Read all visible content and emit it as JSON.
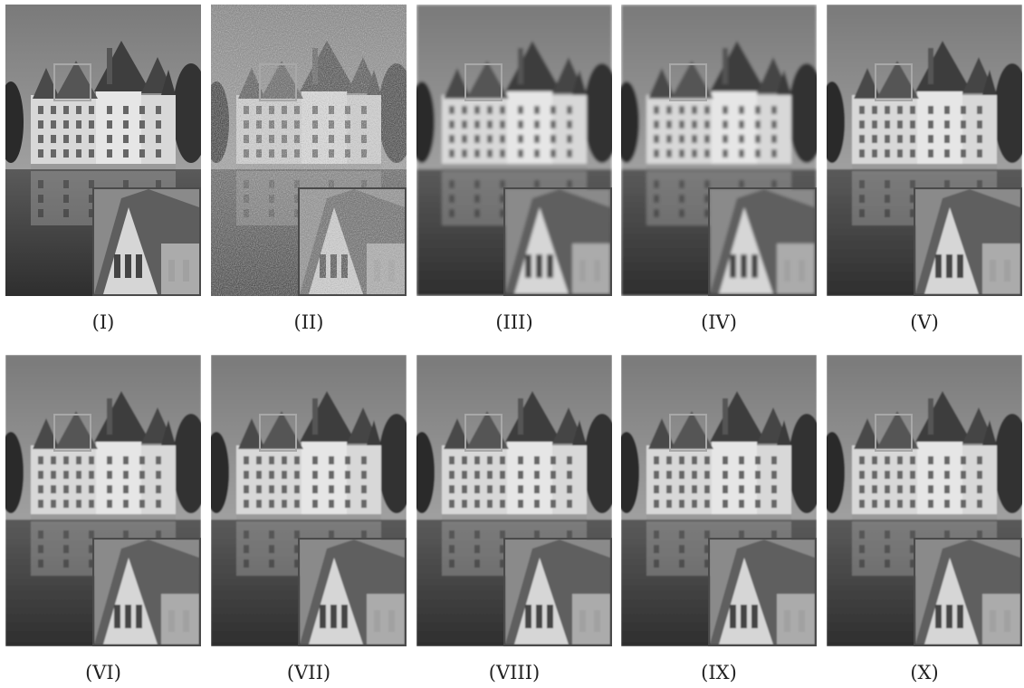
{
  "figure": {
    "panels": [
      {
        "label": "(I)",
        "variant": "clean"
      },
      {
        "label": "(II)",
        "variant": "noisy"
      },
      {
        "label": "(III)",
        "variant": "blurred"
      },
      {
        "label": "(IV)",
        "variant": "blurred"
      },
      {
        "label": "(V)",
        "variant": "smooth"
      },
      {
        "label": "(VI)",
        "variant": "smooth"
      },
      {
        "label": "(VII)",
        "variant": "smooth"
      },
      {
        "label": "(VIII)",
        "variant": "smooth"
      },
      {
        "label": "(IX)",
        "variant": "smooth"
      },
      {
        "label": "(X)",
        "variant": "smooth"
      }
    ],
    "roi_box_color": "#22dd22",
    "inset_box_color": "#dd2222"
  }
}
